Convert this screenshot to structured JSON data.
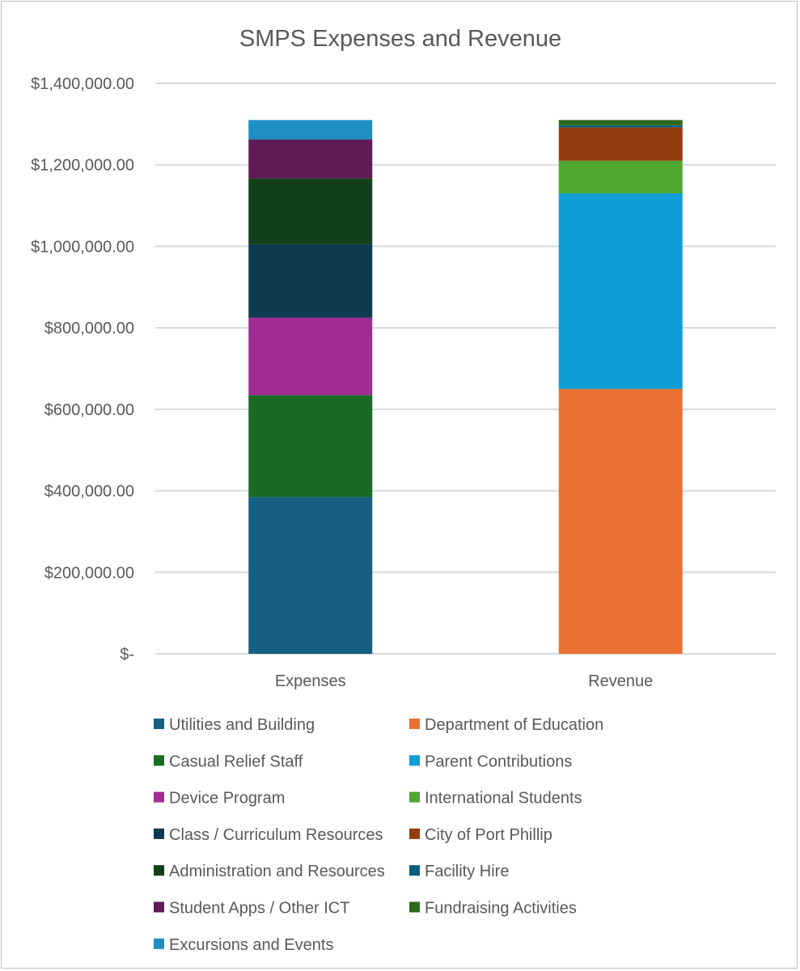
{
  "chart_data": {
    "type": "bar",
    "stacked": true,
    "title": "SMPS Expenses and Revenue",
    "categories": [
      "Expenses",
      "Revenue"
    ],
    "ylim": [
      0,
      1400000
    ],
    "yticks": [
      0,
      200000,
      400000,
      600000,
      800000,
      1000000,
      1200000,
      1400000
    ],
    "ytick_labels": [
      "$-",
      "$200,000.00",
      "$400,000.00",
      "$600,000.00",
      "$800,000.00",
      "$1,000,000.00",
      "$1,200,000.00",
      "$1,400,000.00"
    ],
    "grid": true,
    "legend_position": "bottom",
    "series": [
      {
        "name": "Utilities and Building",
        "color": "#156082",
        "values": [
          385000,
          0
        ]
      },
      {
        "name": "Department of Education",
        "color": "#E97132",
        "values": [
          0,
          650000
        ]
      },
      {
        "name": "Casual Relief Staff",
        "color": "#196B24",
        "values": [
          250000,
          0
        ]
      },
      {
        "name": "Parent Contributions",
        "color": "#0F9ED5",
        "values": [
          0,
          480000
        ]
      },
      {
        "name": "Device Program",
        "color": "#A02B93",
        "values": [
          190000,
          0
        ]
      },
      {
        "name": "International Students",
        "color": "#4EA72E",
        "values": [
          0,
          80000
        ]
      },
      {
        "name": "Class / Curriculum Resources",
        "color": "#0E3A4F",
        "values": [
          180000,
          0
        ]
      },
      {
        "name": "City of Port Phillip",
        "color": "#943C0E",
        "values": [
          0,
          82000
        ]
      },
      {
        "name": "Administration and Resources",
        "color": "#11401A",
        "values": [
          162000,
          0
        ]
      },
      {
        "name": "Facility Hire",
        "color": "#0B5E7E",
        "values": [
          0,
          5000
        ]
      },
      {
        "name": "Student Apps / Other ICT",
        "color": "#601A55",
        "values": [
          95000,
          0
        ]
      },
      {
        "name": "Fundraising Activities",
        "color": "#2E6A1C",
        "values": [
          0,
          13000
        ]
      },
      {
        "name": "Excursions and Events",
        "color": "#1F8FC2",
        "values": [
          48000,
          0
        ]
      }
    ]
  }
}
